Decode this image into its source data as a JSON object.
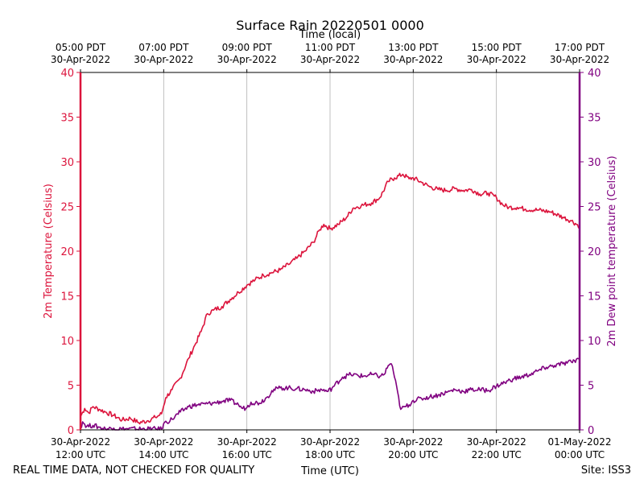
{
  "chart_data": {
    "type": "line",
    "title": "Surface Rain 20220501 0000",
    "top_axis_label": "Time (local)",
    "xlabel": "Time (UTC)",
    "ylabel_left": "2m Temperature (Celsius)",
    "ylabel_right": "2m Dew point temperature (Celsius)",
    "ylim": [
      0,
      40
    ],
    "yticks": [
      0,
      5,
      10,
      15,
      20,
      25,
      30,
      35,
      40
    ],
    "xlim_hours_utc": [
      12,
      24
    ],
    "grid": "vertical",
    "x_ticks_utc": [
      {
        "hour": 12,
        "date": "30-Apr-2022",
        "time": "12:00 UTC"
      },
      {
        "hour": 14,
        "date": "30-Apr-2022",
        "time": "14:00 UTC"
      },
      {
        "hour": 16,
        "date": "30-Apr-2022",
        "time": "16:00 UTC"
      },
      {
        "hour": 18,
        "date": "30-Apr-2022",
        "time": "18:00 UTC"
      },
      {
        "hour": 20,
        "date": "30-Apr-2022",
        "time": "20:00 UTC"
      },
      {
        "hour": 22,
        "date": "30-Apr-2022",
        "time": "22:00 UTC"
      },
      {
        "hour": 24,
        "date": "01-May-2022",
        "time": "00:00 UTC"
      }
    ],
    "x_ticks_local": [
      {
        "hour": 12,
        "time": "05:00 PDT",
        "date": "30-Apr-2022"
      },
      {
        "hour": 14,
        "time": "07:00 PDT",
        "date": "30-Apr-2022"
      },
      {
        "hour": 16,
        "time": "09:00 PDT",
        "date": "30-Apr-2022"
      },
      {
        "hour": 18,
        "time": "11:00 PDT",
        "date": "30-Apr-2022"
      },
      {
        "hour": 20,
        "time": "13:00 PDT",
        "date": "30-Apr-2022"
      },
      {
        "hour": 22,
        "time": "15:00 PDT",
        "date": "30-Apr-2022"
      },
      {
        "hour": 24,
        "time": "17:00 PDT",
        "date": "30-Apr-2022"
      }
    ],
    "series": [
      {
        "name": "2m Temperature",
        "axis": "left",
        "color": "#dc143c",
        "x": [
          12.0,
          12.1,
          12.2,
          12.3,
          12.45,
          12.6,
          12.8,
          13.0,
          13.2,
          13.4,
          13.6,
          13.8,
          13.95,
          14.05,
          14.2,
          14.4,
          14.6,
          14.75,
          14.9,
          15.05,
          15.2,
          15.4,
          15.6,
          15.8,
          16.0,
          16.2,
          16.4,
          16.6,
          16.8,
          17.0,
          17.2,
          17.4,
          17.6,
          17.75,
          17.85,
          18.0,
          18.2,
          18.4,
          18.55,
          18.75,
          19.0,
          19.2,
          19.4,
          19.55,
          19.75,
          19.9,
          20.0,
          20.2,
          20.4,
          20.6,
          20.8,
          21.0,
          21.2,
          21.4,
          21.6,
          21.8,
          22.0,
          22.15,
          22.3,
          22.5,
          22.7,
          23.0,
          23.3,
          23.6,
          23.8,
          24.0
        ],
        "values": [
          1.5,
          2.4,
          1.9,
          2.6,
          2.3,
          2.0,
          1.6,
          1.1,
          1.3,
          0.8,
          1.0,
          1.4,
          1.8,
          3.6,
          4.5,
          5.8,
          8.0,
          9.5,
          11.0,
          13.0,
          13.4,
          13.8,
          14.6,
          15.4,
          16.2,
          16.8,
          17.3,
          17.6,
          17.9,
          18.5,
          19.2,
          20.0,
          21.0,
          22.4,
          23.0,
          22.5,
          23.0,
          23.8,
          24.8,
          25.1,
          25.4,
          26.0,
          27.8,
          28.2,
          28.6,
          28.1,
          28.2,
          27.7,
          27.2,
          26.9,
          26.8,
          27.0,
          26.8,
          26.9,
          26.4,
          26.5,
          26.0,
          25.2,
          24.9,
          24.9,
          24.7,
          24.6,
          24.4,
          23.8,
          23.4,
          22.8
        ]
      },
      {
        "name": "2m Dew point temperature",
        "axis": "right",
        "color": "#800080",
        "x": [
          12.0,
          12.05,
          12.15,
          12.3,
          12.45,
          12.6,
          12.8,
          13.0,
          13.95,
          14.0,
          14.2,
          14.4,
          14.6,
          14.8,
          15.0,
          15.2,
          15.4,
          15.6,
          15.8,
          15.9,
          16.0,
          16.1,
          16.3,
          16.5,
          16.6,
          16.8,
          17.0,
          17.2,
          17.4,
          17.6,
          17.8,
          17.95,
          18.05,
          18.3,
          18.5,
          18.8,
          19.0,
          19.2,
          19.3,
          19.4,
          19.45,
          19.5,
          19.7,
          19.9,
          20.0,
          20.2,
          20.4,
          20.6,
          20.8,
          21.0,
          21.2,
          21.4,
          21.6,
          21.8,
          22.0,
          22.2,
          22.4,
          22.6,
          22.8,
          23.0,
          23.2,
          23.4,
          23.6,
          23.8,
          24.0
        ],
        "values": [
          0.2,
          0.9,
          0.4,
          0.5,
          0.3,
          0.1,
          0.2,
          0.1,
          0.1,
          0.7,
          1.2,
          2.0,
          2.6,
          2.8,
          2.9,
          3.0,
          3.2,
          3.3,
          2.8,
          2.4,
          2.5,
          3.1,
          3.0,
          3.7,
          4.4,
          4.7,
          4.7,
          4.6,
          4.5,
          4.3,
          4.5,
          4.3,
          4.7,
          5.9,
          6.2,
          6.0,
          6.2,
          6.0,
          6.2,
          7.2,
          7.4,
          7.1,
          2.3,
          2.8,
          3.3,
          3.5,
          3.7,
          3.9,
          4.2,
          4.5,
          4.3,
          4.5,
          4.5,
          4.4,
          4.9,
          5.3,
          5.7,
          5.9,
          6.2,
          6.6,
          7.0,
          7.2,
          7.4,
          7.6,
          8.0
        ]
      }
    ]
  },
  "footer": {
    "disclaimer": "REAL TIME DATA, NOT CHECKED FOR QUALITY",
    "site": "Site: ISS3"
  }
}
